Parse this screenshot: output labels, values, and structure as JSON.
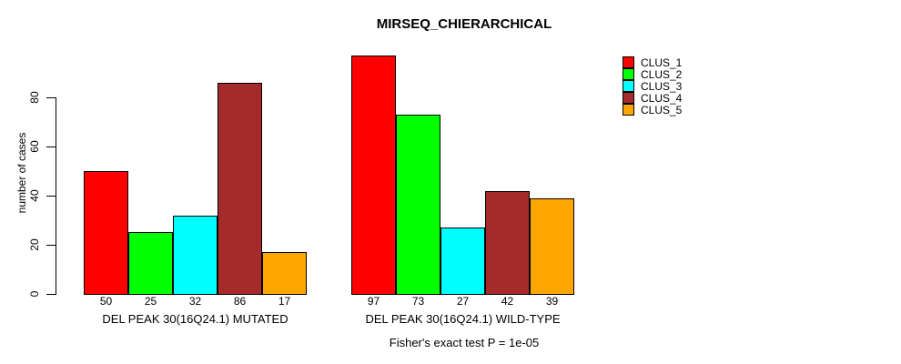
{
  "title": "MIRSEQ_CHIERARCHICAL",
  "y_axis": {
    "label": "number of cases"
  },
  "footer": "Fisher's exact test P = 1e-05",
  "legend": {
    "items": [
      {
        "label": "CLUS_1",
        "color": "#FF0000"
      },
      {
        "label": "CLUS_2",
        "color": "#00FF00"
      },
      {
        "label": "CLUS_3",
        "color": "#00FFFF"
      },
      {
        "label": "CLUS_4",
        "color": "#A52A2A"
      },
      {
        "label": "CLUS_5",
        "color": "#FFA500"
      }
    ]
  },
  "chart_data": {
    "type": "bar",
    "title": "MIRSEQ_CHIERARCHICAL",
    "ylabel": "number of cases",
    "xlabel": "",
    "ylim": [
      0,
      100
    ],
    "yticks": [
      0,
      20,
      40,
      60,
      80
    ],
    "grid": false,
    "legend_position": "top-right",
    "series_names": [
      "CLUS_1",
      "CLUS_2",
      "CLUS_3",
      "CLUS_4",
      "CLUS_5"
    ],
    "series_colors": [
      "#FF0000",
      "#00FF00",
      "#00FFFF",
      "#A52A2A",
      "#FFA500"
    ],
    "groups": [
      {
        "label": "DEL PEAK 30(16Q24.1) MUTATED",
        "values": [
          50,
          25,
          32,
          86,
          17
        ]
      },
      {
        "label": "DEL PEAK 30(16Q24.1) WILD-TYPE",
        "values": [
          97,
          73,
          27,
          42,
          39
        ]
      }
    ],
    "bar_value_labels_shown": true,
    "annotation": "Fisher's exact test P = 1e-05"
  }
}
